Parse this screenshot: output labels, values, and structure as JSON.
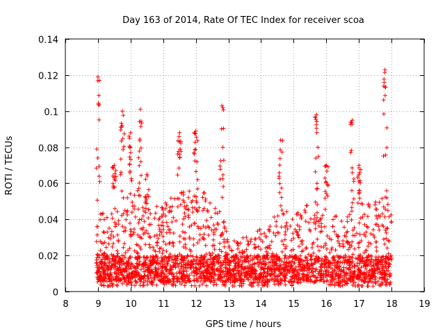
{
  "chart_data": {
    "type": "scatter",
    "title": "Day 163 of 2014, Rate Of TEC Index for receiver scoa",
    "xlabel": "GPS time / hours",
    "ylabel": "ROTI / TECUs",
    "xlim": [
      8,
      19
    ],
    "ylim": [
      0,
      0.14
    ],
    "xticks": [
      "8",
      "9",
      "10",
      "11",
      "12",
      "13",
      "14",
      "15",
      "16",
      "17",
      "18",
      "19"
    ],
    "yticks": [
      "0",
      "0.02",
      "0.04",
      "0.06",
      "0.08",
      "0.1",
      "0.12",
      "0.14"
    ],
    "grid": true,
    "marker": "+",
    "color": "#ff0000",
    "x_range_of_data": [
      8.95,
      18.0
    ],
    "series": [
      {
        "name": "ROTI",
        "envelope": [
          {
            "hour": 9.0,
            "typical_max": 0.045,
            "peak": 0.119
          },
          {
            "hour": 9.5,
            "typical_max": 0.045,
            "peak": 0.07
          },
          {
            "hour": 9.75,
            "typical_max": 0.06,
            "peak": 0.1
          },
          {
            "hour": 10.0,
            "typical_max": 0.06,
            "peak": 0.088
          },
          {
            "hour": 10.3,
            "typical_max": 0.055,
            "peak": 0.101
          },
          {
            "hour": 10.5,
            "typical_max": 0.045,
            "peak": 0.065
          },
          {
            "hour": 11.0,
            "typical_max": 0.05,
            "peak": 0.06
          },
          {
            "hour": 11.5,
            "typical_max": 0.055,
            "peak": 0.088
          },
          {
            "hour": 12.0,
            "typical_max": 0.06,
            "peak": 0.089
          },
          {
            "hour": 12.5,
            "typical_max": 0.05,
            "peak": 0.06
          },
          {
            "hour": 12.8,
            "typical_max": 0.045,
            "peak": 0.103
          },
          {
            "hour": 13.0,
            "typical_max": 0.03,
            "peak": 0.035
          },
          {
            "hour": 13.5,
            "typical_max": 0.03,
            "peak": 0.035
          },
          {
            "hour": 14.0,
            "typical_max": 0.035,
            "peak": 0.045
          },
          {
            "hour": 14.6,
            "typical_max": 0.045,
            "peak": 0.084
          },
          {
            "hour": 15.0,
            "typical_max": 0.045,
            "peak": 0.055
          },
          {
            "hour": 15.7,
            "typical_max": 0.05,
            "peak": 0.098
          },
          {
            "hour": 16.0,
            "typical_max": 0.045,
            "peak": 0.07
          },
          {
            "hour": 16.5,
            "typical_max": 0.04,
            "peak": 0.05
          },
          {
            "hour": 16.8,
            "typical_max": 0.045,
            "peak": 0.095
          },
          {
            "hour": 17.0,
            "typical_max": 0.05,
            "peak": 0.07
          },
          {
            "hour": 17.5,
            "typical_max": 0.05,
            "peak": 0.06
          },
          {
            "hour": 17.8,
            "typical_max": 0.055,
            "peak": 0.123
          },
          {
            "hour": 18.0,
            "typical_max": 0.05,
            "peak": 0.06
          }
        ],
        "baseline_min": 0.003,
        "dense_band": [
          0.005,
          0.02
        ]
      }
    ]
  }
}
